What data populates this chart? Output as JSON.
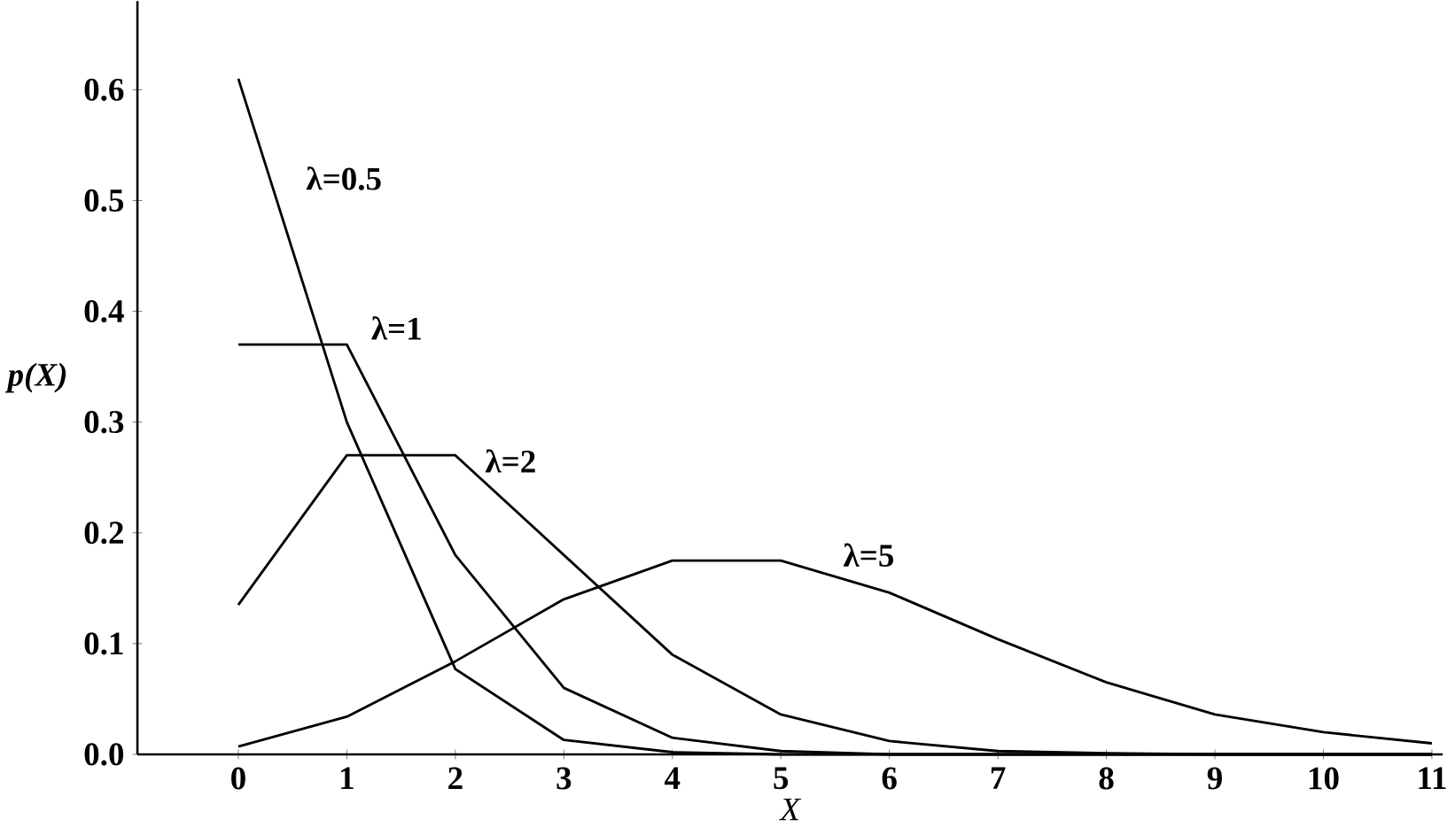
{
  "chart_data": {
    "type": "line",
    "xlabel": "X",
    "ylabel": "p(X)",
    "x": [
      0,
      1,
      2,
      3,
      4,
      5,
      6,
      7,
      8,
      9,
      10,
      11
    ],
    "series": [
      {
        "name": "λ=0.5",
        "color": "#000000",
        "values": [
          0.61,
          0.3,
          0.077,
          0.013,
          0.002,
          0,
          0,
          0,
          0,
          0,
          0,
          0
        ]
      },
      {
        "name": "λ=1",
        "color": "#000000",
        "values": [
          0.37,
          0.37,
          0.18,
          0.06,
          0.015,
          0.003,
          0,
          0,
          0,
          0,
          0,
          0
        ]
      },
      {
        "name": "λ=2",
        "color": "#000000",
        "values": [
          0.135,
          0.27,
          0.27,
          0.18,
          0.09,
          0.036,
          0.012,
          0.003,
          0.001,
          0,
          0,
          0
        ]
      },
      {
        "name": "λ=5",
        "color": "#000000",
        "values": [
          0.007,
          0.034,
          0.084,
          0.14,
          0.175,
          0.175,
          0.146,
          0.104,
          0.065,
          0.036,
          0.02,
          0.01
        ]
      }
    ],
    "xlim": [
      -0.93,
      11.1
    ],
    "ylim": [
      0,
      0.68
    ],
    "xticks": [
      0,
      1,
      2,
      3,
      4,
      5,
      6,
      7,
      8,
      9,
      10,
      11
    ],
    "yticks": [
      {
        "value": 0,
        "label": "0.0"
      },
      0.1,
      0.2,
      0.3,
      0.4,
      0.5,
      0.6
    ],
    "grid": false,
    "legend": false,
    "marker": "none",
    "line_style": "solid"
  }
}
